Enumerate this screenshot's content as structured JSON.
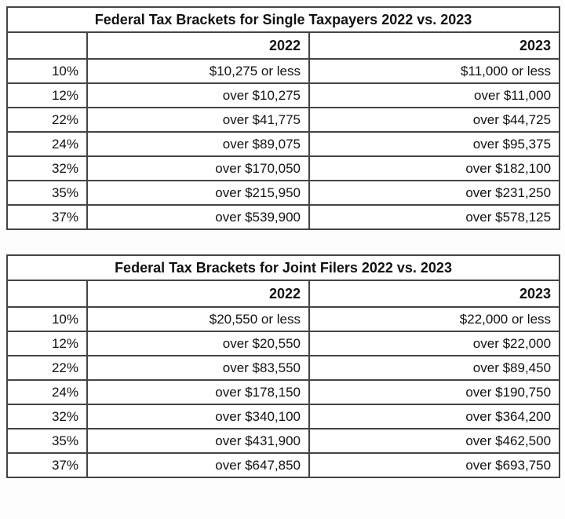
{
  "colors": {
    "page_background": "#fdfdfd",
    "table_background": "#ffffff",
    "border": "#444444",
    "text": "#111111"
  },
  "chart_data": [
    {
      "type": "table",
      "title": "Federal Tax Brackets for Single Taxpayers 2022 vs. 2023",
      "columns": [
        "",
        "2022",
        "2023"
      ],
      "rows": [
        [
          "10%",
          "$10,275 or less",
          "$11,000 or less"
        ],
        [
          "12%",
          "over $10,275",
          "over $11,000"
        ],
        [
          "22%",
          "over $41,775",
          "over $44,725"
        ],
        [
          "24%",
          "over $89,075",
          "over $95,375"
        ],
        [
          "32%",
          "over $170,050",
          "over $182,100"
        ],
        [
          "35%",
          "over $215,950",
          "over $231,250"
        ],
        [
          "37%",
          "over $539,900",
          "over $578,125"
        ]
      ]
    },
    {
      "type": "table",
      "title": "Federal Tax Brackets for Joint Filers 2022 vs. 2023",
      "columns": [
        "",
        "2022",
        "2023"
      ],
      "rows": [
        [
          "10%",
          "$20,550 or less",
          "$22,000 or less"
        ],
        [
          "12%",
          "over $20,550",
          "over $22,000"
        ],
        [
          "22%",
          "over $83,550",
          "over $89,450"
        ],
        [
          "24%",
          "over $178,150",
          "over $190,750"
        ],
        [
          "32%",
          "over $340,100",
          "over $364,200"
        ],
        [
          "35%",
          "over $431,900",
          "over $462,500"
        ],
        [
          "37%",
          "over $647,850",
          "over $693,750"
        ]
      ]
    }
  ]
}
